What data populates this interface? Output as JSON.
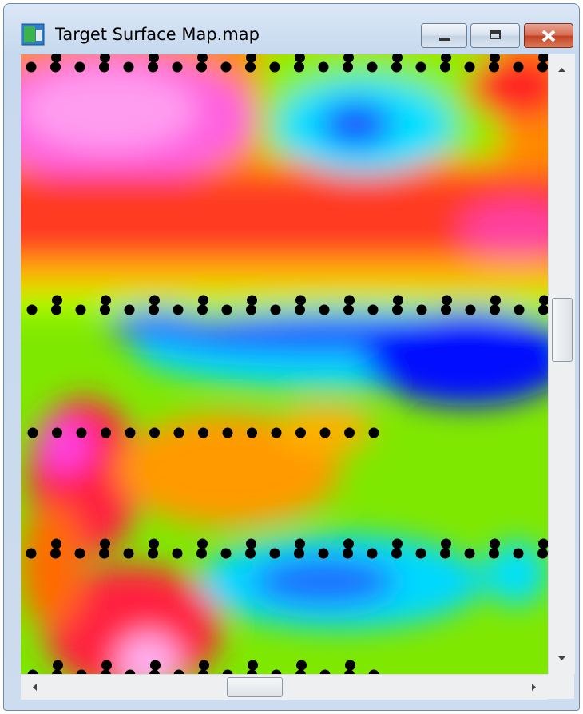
{
  "window": {
    "title": "Target Surface Map.map"
  }
}
